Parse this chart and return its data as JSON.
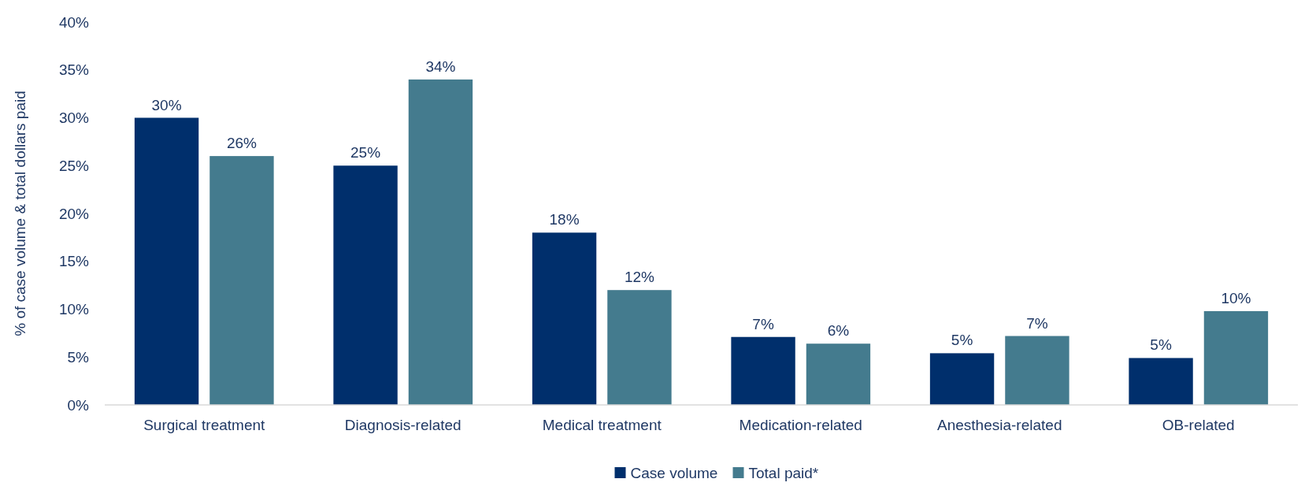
{
  "chart_data": {
    "type": "bar",
    "ylabel": "% of case volume & total dollars paid",
    "categories": [
      "Surgical treatment",
      "Diagnosis-related",
      "Medical treatment",
      "Medication-related",
      "Anesthesia-related",
      "OB-related"
    ],
    "series": [
      {
        "name": "Case volume",
        "color": "#002f6c",
        "values": [
          30,
          25,
          18,
          7.1,
          5.4,
          4.9
        ],
        "value_labels": [
          "30%",
          "25%",
          "18%",
          "7%",
          "5%",
          "5%"
        ]
      },
      {
        "name": "Total paid*",
        "color": "#447b8e",
        "values": [
          26,
          34,
          12,
          6.4,
          7.2,
          9.8
        ],
        "value_labels": [
          "26%",
          "34%",
          "12%",
          "6%",
          "7%",
          "10%"
        ]
      }
    ],
    "ylim": [
      0,
      40
    ],
    "yticks": [
      {
        "value": 0,
        "label": "0%"
      },
      {
        "value": 5,
        "label": "5%"
      },
      {
        "value": 10,
        "label": "10%"
      },
      {
        "value": 15,
        "label": "15%"
      },
      {
        "value": 20,
        "label": "20%"
      },
      {
        "value": 25,
        "label": "25%"
      },
      {
        "value": 30,
        "label": "30%"
      },
      {
        "value": 35,
        "label": "35%"
      },
      {
        "value": 40,
        "label": "40%"
      }
    ],
    "legend": "bottom",
    "grid": false
  }
}
